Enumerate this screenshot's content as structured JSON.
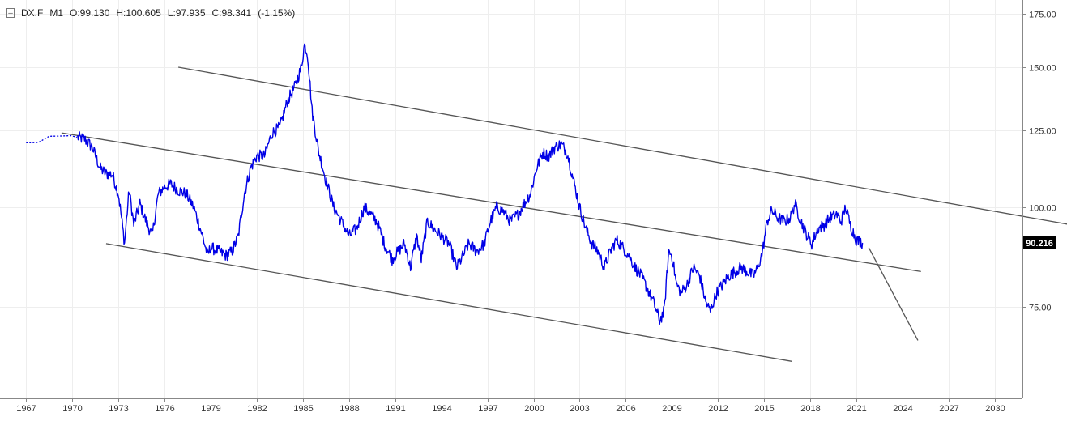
{
  "header": {
    "collapse_glyph": "–",
    "symbol": "DX.F",
    "interval": "M1",
    "open": "O:99.130",
    "high": "H:100.605",
    "low": "L:97.935",
    "close": "C:98.341",
    "change": "(-1.15%)"
  },
  "price_badge": "90.216",
  "colors": {
    "series": "#0000e6",
    "trendline": "#555555",
    "grid": "#eeeeee",
    "badge_bg": "#000000",
    "badge_text": "#ffffff"
  },
  "chart_data": {
    "type": "line",
    "series": [
      {
        "x": [
          1967.0,
          1967.8,
          1968.5,
          1969.3,
          1969.9,
          1970.3,
          1970.8,
          1971.3,
          1971.8,
          1972.2,
          1972.6,
          1973.0,
          1973.4,
          1973.7,
          1974.0,
          1974.4,
          1974.8,
          1975.2,
          1975.6,
          1976.0,
          1976.4,
          1976.9,
          1977.4,
          1977.9,
          1978.4,
          1978.8,
          1979.0,
          1979.5,
          1980.0,
          1980.4,
          1980.8,
          1981.2,
          1981.6,
          1982.0,
          1982.5,
          1983.0,
          1983.5,
          1984.0,
          1984.5,
          1984.9,
          1985.1,
          1985.3,
          1985.6,
          1986.0,
          1986.5,
          1987.0,
          1987.5,
          1988.0,
          1988.5,
          1989.0,
          1989.4,
          1989.8,
          1990.3,
          1990.8,
          1991.2,
          1991.6,
          1992.0,
          1992.4,
          1992.7,
          1993.1,
          1993.5,
          1994.0,
          1994.5,
          1995.0,
          1995.3,
          1995.8,
          1996.3,
          1996.8,
          1997.2,
          1997.6,
          1998.0,
          1998.5,
          1999.0,
          1999.4,
          1999.8,
          2000.2,
          2000.6,
          2001.0,
          2001.4,
          2001.8,
          2002.2,
          2002.6,
          2003.0,
          2003.4,
          2003.8,
          2004.2,
          2004.6,
          2005.0,
          2005.4,
          2005.8,
          2006.2,
          2006.6,
          2007.0,
          2007.4,
          2007.8,
          2008.2,
          2008.5,
          2008.8,
          2009.0,
          2009.3,
          2009.6,
          2010.0,
          2010.4,
          2010.8,
          2011.2,
          2011.5,
          2011.9,
          2012.3,
          2012.7,
          2013.1,
          2013.5,
          2013.9,
          2014.3,
          2014.6,
          2014.9,
          2015.2,
          2015.5,
          2015.9,
          2016.3,
          2016.7,
          2017.0,
          2017.4,
          2017.8,
          2018.1,
          2018.5,
          2018.9,
          2019.3,
          2019.7,
          2020.0,
          2020.3,
          2020.6,
          2021.0,
          2021.4
        ],
        "y": [
          120.5,
          120.6,
          122.8,
          122.9,
          123.0,
          122.5,
          121.8,
          119.0,
          112.0,
          110.2,
          110.0,
          104.0,
          90.0,
          105.0,
          95.0,
          101.0,
          96.0,
          92.0,
          104.0,
          106.0,
          107.0,
          105.0,
          104.0,
          100.0,
          93.0,
          87.0,
          89.0,
          88.0,
          87.0,
          88.0,
          92.0,
          104.0,
          112.0,
          116.0,
          116.0,
          124.0,
          126.0,
          136.0,
          142.0,
          150.0,
          160.0,
          156.0,
          132.0,
          118.0,
          108.0,
          100.0,
          96.0,
          92.0,
          94.0,
          100.0,
          98.0,
          96.0,
          90.0,
          86.0,
          88.0,
          90.0,
          84.0,
          92.0,
          86.0,
          96.0,
          94.0,
          92.0,
          90.0,
          84.0,
          86.0,
          90.0,
          88.0,
          90.0,
          96.0,
          100.0,
          99.0,
          96.0,
          98.0,
          101.0,
          104.0,
          112.0,
          117.0,
          116.0,
          119.0,
          120.0,
          117.0,
          108.0,
          100.0,
          94.0,
          90.0,
          88.0,
          84.0,
          88.0,
          91.0,
          89.0,
          87.0,
          84.0,
          82.0,
          79.0,
          76.0,
          72.0,
          74.0,
          88.0,
          87.0,
          80.0,
          78.0,
          80.0,
          84.0,
          82.0,
          76.0,
          74.0,
          78.0,
          80.0,
          82.0,
          83.0,
          84.0,
          83.0,
          82.0,
          84.0,
          88.0,
          96.0,
          99.0,
          97.0,
          96.0,
          97.0,
          101.0,
          96.0,
          92.0,
          90.0,
          94.0,
          95.0,
          97.0,
          98.0,
          96.0,
          100.0,
          95.0,
          91.0,
          90.2
        ]
      }
    ],
    "trendlines": [
      {
        "x": [
          1976.9,
          2035.0
        ],
        "y": [
          150.0,
          95.0
        ]
      },
      {
        "x": [
          1969.3,
          2025.2
        ],
        "y": [
          124.0,
          83.0
        ]
      },
      {
        "x": [
          1972.2,
          2016.8
        ],
        "y": [
          90.0,
          64.0
        ]
      },
      {
        "x": [
          2021.8,
          2025.0
        ],
        "y": [
          89.0,
          68.0
        ]
      }
    ],
    "xlim": [
      1965.3,
      2031.8
    ],
    "ylim": [
      57.5,
      182.2
    ],
    "log_scale_y": true,
    "x_ticks": [
      1967,
      1970,
      1973,
      1976,
      1979,
      1982,
      1985,
      1988,
      1991,
      1994,
      1997,
      2000,
      2003,
      2006,
      2009,
      2012,
      2015,
      2018,
      2021,
      2024,
      2027,
      2030
    ],
    "x_tick_labels": [
      "1967",
      "1970",
      "1973",
      "1976",
      "1979",
      "1982",
      "1985",
      "1988",
      "1991",
      "1994",
      "1997",
      "2000",
      "2003",
      "2006",
      "2009",
      "2012",
      "2015",
      "2018",
      "2021",
      "2024",
      "2027",
      "2030"
    ],
    "y_ticks": [
      75,
      100,
      125,
      150,
      175
    ],
    "y_tick_labels": [
      "75.00",
      "100.00",
      "125.00",
      "150.00",
      "175.00"
    ],
    "last_value": 90.216,
    "grid": true,
    "axis_position": "right"
  }
}
